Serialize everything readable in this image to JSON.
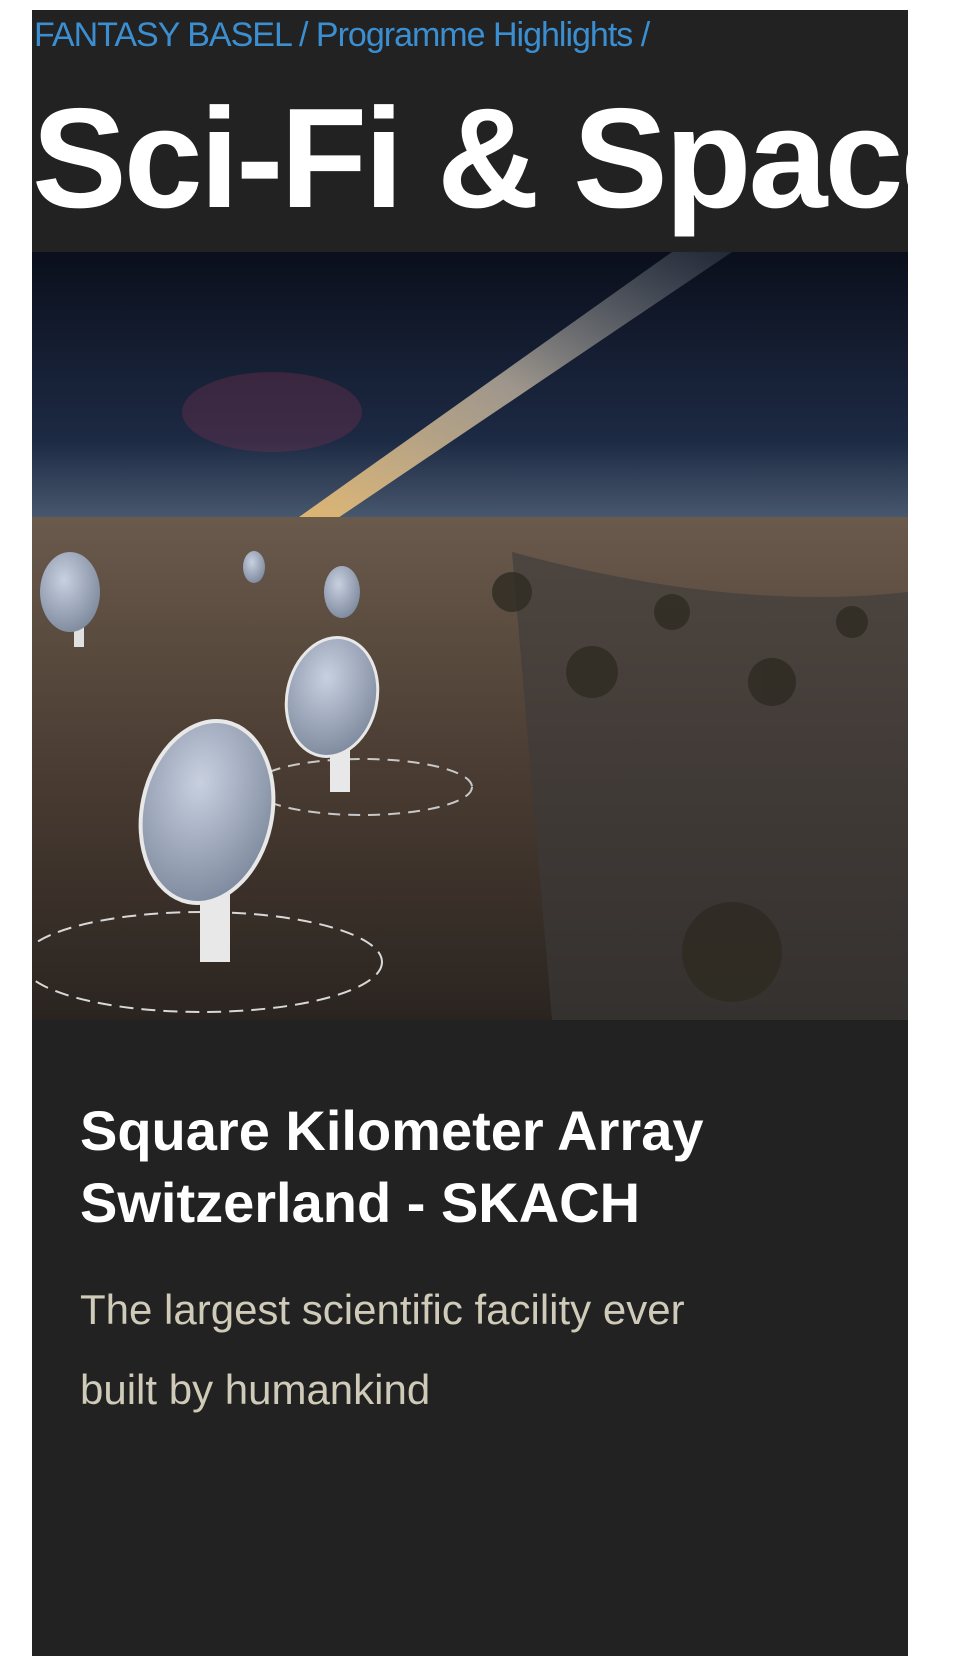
{
  "breadcrumb": "FANTASY BASEL / Programme Highlights /",
  "page_title": "Sci-Fi & Space",
  "card": {
    "title_lines": [
      "Square Kilometer Array",
      "Switzerland - SKACH"
    ],
    "description_lines": [
      "The largest scientific facility ever",
      "built by humankind"
    ]
  }
}
